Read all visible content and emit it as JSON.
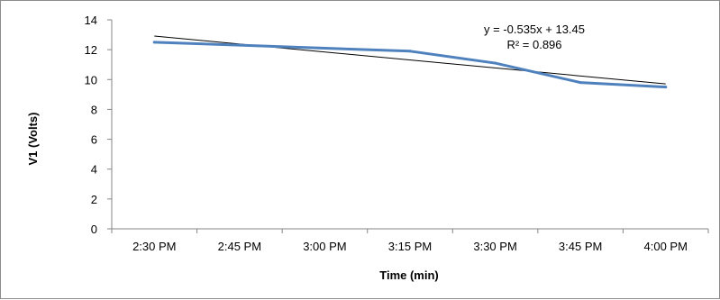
{
  "chart_data": {
    "type": "line",
    "categories": [
      "2:30 PM",
      "2:45 PM",
      "3:00 PM",
      "3:15 PM",
      "3:30 PM",
      "3:45 PM",
      "4:00 PM"
    ],
    "series": [
      {
        "values": [
          12.5,
          12.3,
          12.1,
          11.9,
          11.1,
          9.8,
          9.5
        ],
        "color": "#4f81bd"
      }
    ],
    "trendline": {
      "slope": -0.535,
      "intercept": 13.45,
      "color": "#000000"
    },
    "annotations": [
      "y = -0.535x + 13.45",
      "R² = 0.896"
    ],
    "xlabel": "Time (min)",
    "ylabel": "V1 (Volts)",
    "ylim": [
      0,
      14
    ],
    "yticks": [
      0,
      2,
      4,
      6,
      8,
      10,
      12,
      14
    ],
    "grid": false,
    "legend": "none"
  }
}
